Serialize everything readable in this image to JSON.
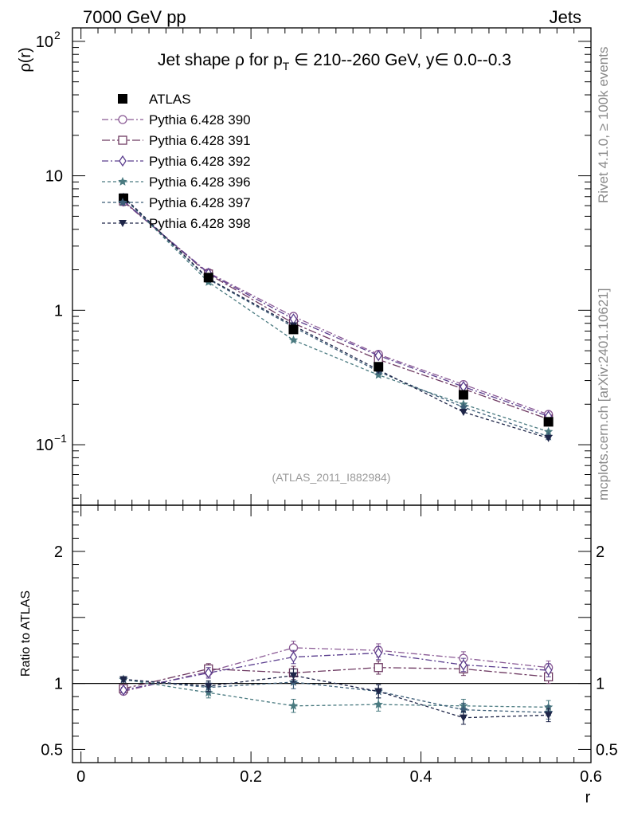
{
  "header": {
    "left": "7000 GeV pp",
    "right": "Jets"
  },
  "side_text": {
    "top": "Rivet 4.1.0, ≥ 100k events",
    "bottom": "mcplots.cern.ch [arXiv:2401.10621]"
  },
  "chart_data": {
    "type": "line",
    "title": "Jet shape ρ for p_T ∈ 210--260 GeV, y∈ 0.0--0.3",
    "title_parts": {
      "pre": "Jet shape ρ for p",
      "sub": "T",
      "post": " ∈ 210--260 GeV, y∈ 0.0--0.3"
    },
    "analysis_label": "(ATLAS_2011_I882984)",
    "xlabel": "r",
    "ylabel_main": "ρ(r)",
    "ylabel_ratio": "Ratio to ATLAS",
    "xlim": [
      -0.01,
      0.6
    ],
    "ylim_main_log10": [
      -1.45,
      2.1
    ],
    "ylim_ratio": [
      0.4,
      2.35
    ],
    "x_ticks": [
      {
        "v": 0,
        "label": "0"
      },
      {
        "v": 0.2,
        "label": "0.2"
      },
      {
        "v": 0.4,
        "label": "0.4"
      },
      {
        "v": 0.6,
        "label": "0.6"
      }
    ],
    "main_y_ticks": [
      {
        "v": 0.1,
        "base": "10",
        "exp": "−1"
      },
      {
        "v": 1,
        "base": "1",
        "exp": ""
      },
      {
        "v": 10,
        "base": "10",
        "exp": ""
      },
      {
        "v": 100,
        "base": "10",
        "exp": "2"
      }
    ],
    "ratio_y_ticks": [
      {
        "v": 0.5,
        "label": "0.5"
      },
      {
        "v": 1,
        "label": "1"
      },
      {
        "v": 2,
        "label": "2"
      }
    ],
    "x": [
      0.05,
      0.15,
      0.25,
      0.35,
      0.45,
      0.55
    ],
    "data": {
      "name": "ATLAS",
      "values": [
        6.8,
        1.75,
        0.72,
        0.38,
        0.235,
        0.148
      ],
      "errors": [
        0.25,
        0.06,
        0.03,
        0.015,
        0.01,
        0.007
      ]
    },
    "series": [
      {
        "name": "Pythia 6.428 390",
        "color": "#8a5a95",
        "marker": "circle-open",
        "dash": "8,3,2,3",
        "values": [
          6.4,
          1.9,
          0.9,
          0.47,
          0.28,
          0.168
        ],
        "ratio": [
          0.94,
          1.09,
          1.27,
          1.25,
          1.19,
          1.12
        ],
        "ratio_err": [
          0.02,
          0.04,
          0.05,
          0.05,
          0.05,
          0.05
        ]
      },
      {
        "name": "Pythia 6.428 391",
        "color": "#6e3a62",
        "marker": "square-open",
        "dash": "10,3,3,3",
        "values": [
          6.5,
          1.86,
          0.8,
          0.43,
          0.26,
          0.155
        ],
        "ratio": [
          0.96,
          1.11,
          1.08,
          1.12,
          1.11,
          1.05
        ],
        "ratio_err": [
          0.02,
          0.04,
          0.05,
          0.05,
          0.05,
          0.05
        ]
      },
      {
        "name": "Pythia 6.428 392",
        "color": "#5b3e8e",
        "marker": "diamond-open",
        "dash": "8,3,2,3",
        "values": [
          6.5,
          1.88,
          0.86,
          0.46,
          0.27,
          0.163
        ],
        "ratio": [
          0.95,
          1.08,
          1.2,
          1.23,
          1.14,
          1.1
        ],
        "ratio_err": [
          0.02,
          0.04,
          0.05,
          0.05,
          0.05,
          0.05
        ]
      },
      {
        "name": "Pythia 6.428 396",
        "color": "#4a7a80",
        "marker": "star",
        "dash": "4,3",
        "values": [
          6.9,
          1.62,
          0.6,
          0.33,
          0.2,
          0.125
        ],
        "ratio": [
          1.03,
          0.93,
          0.83,
          0.84,
          0.83,
          0.82
        ],
        "ratio_err": [
          0.02,
          0.04,
          0.05,
          0.05,
          0.05,
          0.05
        ]
      },
      {
        "name": "Pythia 6.428 397",
        "color": "#3b5c76",
        "marker": "star",
        "dash": "4,3",
        "values": [
          6.9,
          1.7,
          0.75,
          0.35,
          0.19,
          0.115
        ],
        "ratio": [
          1.03,
          0.97,
          1.01,
          0.94,
          0.8,
          0.78
        ],
        "ratio_err": [
          0.02,
          0.04,
          0.05,
          0.05,
          0.05,
          0.05
        ]
      },
      {
        "name": "Pythia 6.428 398",
        "color": "#1e2548",
        "marker": "triangle-down",
        "dash": "4,3",
        "values": [
          7.0,
          1.72,
          0.77,
          0.36,
          0.175,
          0.112
        ],
        "ratio": [
          1.03,
          0.98,
          1.06,
          0.94,
          0.74,
          0.76
        ],
        "ratio_err": [
          0.02,
          0.04,
          0.05,
          0.05,
          0.05,
          0.05
        ]
      }
    ]
  }
}
